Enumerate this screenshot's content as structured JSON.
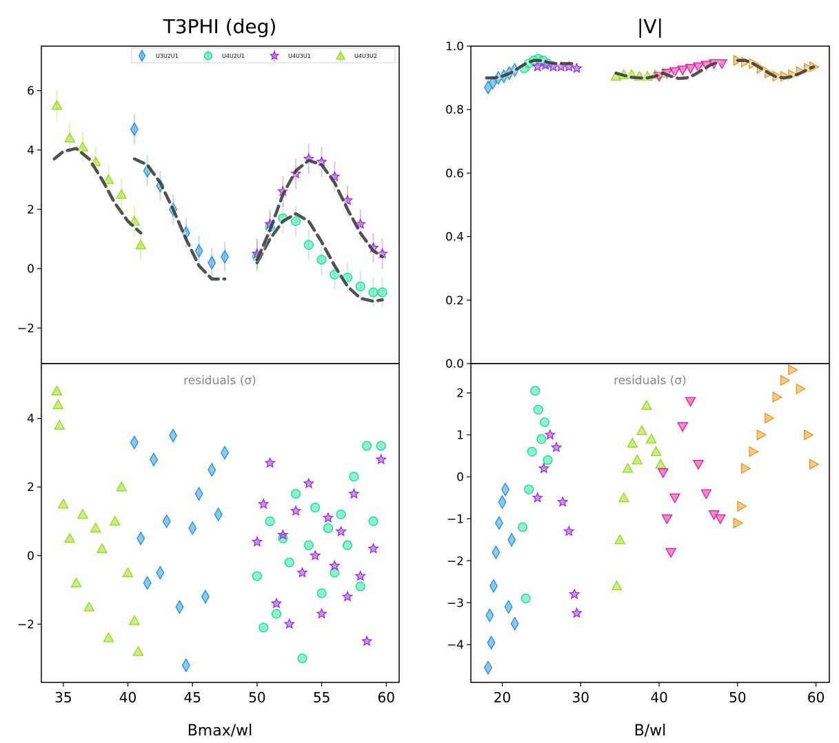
{
  "figure": {
    "left_title": "T3PHI (deg)",
    "right_title": "|V|",
    "left_xlabel": "Bmax/wl",
    "right_xlabel": "B/wl",
    "residuals_label": "residuals (σ)"
  },
  "colors": {
    "U3U2U1": "#1f8fd8",
    "U4U2U1": "#22e09a",
    "U4U3U1": "#9b2be0",
    "U4U3U2": "#8fdc12",
    "pink": "#e8189a",
    "orange": "#e8961a",
    "model": "#333333"
  },
  "legend": [
    {
      "label": "U3U2U1",
      "marker": "diamond",
      "color": "#1f8fd8"
    },
    {
      "label": "U4U2U1",
      "marker": "circle",
      "color": "#22e09a"
    },
    {
      "label": "U4U3U1",
      "marker": "star",
      "color": "#9b2be0"
    },
    {
      "label": "U4U3U2",
      "marker": "triangle",
      "color": "#8fdc12"
    }
  ],
  "chart_data": [
    {
      "id": "t3phi",
      "type": "scatter",
      "title": "T3PHI (deg)",
      "xlim": [
        33.3,
        61.0
      ],
      "ylim": [
        -3.2,
        7.5
      ],
      "yticks": [
        -2,
        0,
        2,
        4,
        6
      ],
      "legend_position": "top-right",
      "series": [
        {
          "name": "U4U3U2",
          "marker": "triangle",
          "color": "#8fdc12",
          "errorbars": true,
          "x": [
            34.5,
            35.5,
            36.5,
            37.5,
            38.5,
            39.5,
            40.5,
            41.0
          ],
          "y": [
            5.5,
            4.4,
            4.1,
            3.6,
            3.0,
            2.5,
            1.6,
            0.8
          ]
        },
        {
          "name": "U3U2U1",
          "marker": "diamond",
          "color": "#1f8fd8",
          "errorbars": true,
          "x": [
            40.5,
            41.5,
            42.5,
            43.5,
            44.5,
            45.5,
            46.5,
            47.5
          ],
          "y": [
            4.7,
            3.3,
            2.8,
            2.0,
            1.2,
            0.6,
            0.2,
            0.4
          ]
        },
        {
          "name": "U4U2U1",
          "marker": "circle",
          "color": "#22e09a",
          "errorbars": true,
          "x": [
            50.0,
            51.0,
            52.0,
            53.0,
            54.0,
            55.0,
            56.0,
            57.0,
            58.0,
            59.0,
            59.7
          ],
          "y": [
            0.4,
            1.4,
            1.7,
            1.6,
            0.8,
            0.3,
            -0.2,
            -0.3,
            -0.6,
            -0.8,
            -0.8
          ]
        },
        {
          "name": "U4U3U1",
          "marker": "star",
          "color": "#9b2be0",
          "errorbars": true,
          "x": [
            50.0,
            51.0,
            52.0,
            53.0,
            54.0,
            55.0,
            56.0,
            57.0,
            58.0,
            59.0,
            59.7
          ],
          "y": [
            0.5,
            1.5,
            2.6,
            3.2,
            3.7,
            3.6,
            3.1,
            2.3,
            1.5,
            0.7,
            0.5
          ]
        }
      ],
      "models": [
        {
          "x": [
            34.3,
            35.0,
            36.0,
            37.0,
            38.0,
            39.0,
            40.0,
            41.0
          ],
          "y": [
            3.7,
            3.95,
            4.05,
            3.7,
            3.0,
            2.2,
            1.6,
            1.2
          ]
        },
        {
          "x": [
            40.5,
            41.5,
            42.5,
            43.5,
            44.5,
            45.5,
            46.5,
            47.5
          ],
          "y": [
            3.7,
            3.5,
            2.9,
            2.0,
            1.0,
            0.1,
            -0.35,
            -0.35
          ]
        },
        {
          "x": [
            50.0,
            51.0,
            52.0,
            53.0,
            54.0,
            55.0,
            56.0,
            57.0,
            58.0,
            59.0,
            59.7
          ],
          "y": [
            0.2,
            1.0,
            1.6,
            1.85,
            1.6,
            0.9,
            0.1,
            -0.6,
            -1.0,
            -1.1,
            -1.05
          ]
        },
        {
          "x": [
            50.0,
            51.0,
            52.0,
            53.0,
            54.0,
            55.0,
            56.0,
            57.0,
            58.0,
            59.0,
            59.7
          ],
          "y": [
            0.3,
            1.3,
            2.5,
            3.3,
            3.65,
            3.5,
            2.9,
            2.0,
            1.2,
            0.6,
            0.4
          ]
        }
      ]
    },
    {
      "id": "t3phi_residuals",
      "type": "scatter",
      "xlabel": "Bmax/wl",
      "xlim": [
        33.3,
        61.0
      ],
      "ylim": [
        -3.7,
        5.6
      ],
      "yticks": [
        -2,
        0,
        2,
        4
      ],
      "xticks": [
        35,
        40,
        45,
        50,
        55,
        60
      ],
      "series": [
        {
          "name": "U4U3U2",
          "marker": "triangle",
          "color": "#8fdc12",
          "x": [
            34.5,
            34.6,
            34.7,
            35.0,
            35.5,
            36.0,
            36.5,
            37.0,
            37.5,
            38.0,
            38.5,
            39.0,
            39.5,
            40.0,
            40.5,
            40.8
          ],
          "y": [
            4.8,
            4.4,
            3.8,
            1.5,
            0.5,
            -0.8,
            1.2,
            -1.5,
            0.8,
            0.2,
            -2.4,
            1.0,
            2.0,
            -0.5,
            -1.9,
            -2.8
          ]
        },
        {
          "name": "U3U2U1",
          "marker": "diamond",
          "color": "#1f8fd8",
          "x": [
            40.5,
            41.0,
            41.5,
            42.0,
            42.5,
            43.0,
            43.5,
            44.0,
            44.5,
            45.0,
            45.5,
            46.0,
            46.5,
            47.0,
            47.5
          ],
          "y": [
            3.3,
            0.5,
            -0.8,
            2.8,
            -0.5,
            1.0,
            3.5,
            -1.5,
            -3.2,
            0.8,
            1.8,
            -1.2,
            2.5,
            1.2,
            3.0
          ]
        },
        {
          "name": "U4U2U1",
          "marker": "circle",
          "color": "#22e09a",
          "x": [
            50.0,
            50.5,
            51.0,
            51.5,
            52.0,
            52.5,
            53.0,
            53.5,
            54.0,
            54.5,
            55.0,
            55.5,
            56.0,
            56.5,
            57.0,
            57.5,
            58.0,
            58.5,
            59.0,
            59.6
          ],
          "y": [
            -0.6,
            -2.1,
            1.0,
            -1.7,
            0.5,
            -0.2,
            1.8,
            -3.0,
            0.3,
            1.4,
            -1.1,
            0.8,
            -0.5,
            1.2,
            0.3,
            2.3,
            -0.9,
            3.2,
            1.0,
            3.2
          ]
        },
        {
          "name": "U4U3U1",
          "marker": "star",
          "color": "#9b2be0",
          "x": [
            50.0,
            50.5,
            51.0,
            51.5,
            52.0,
            52.5,
            53.0,
            53.5,
            54.0,
            54.5,
            55.0,
            55.5,
            56.0,
            56.5,
            57.0,
            57.5,
            58.0,
            58.5,
            59.0,
            59.6
          ],
          "y": [
            0.4,
            1.5,
            2.7,
            -1.4,
            0.6,
            -2.0,
            1.3,
            -0.5,
            2.1,
            0.0,
            -1.7,
            1.1,
            -0.3,
            0.7,
            -1.2,
            1.8,
            -0.6,
            -2.5,
            0.2,
            2.8
          ]
        }
      ]
    },
    {
      "id": "visamp",
      "type": "scatter",
      "title": "|V|",
      "xlim": [
        16.0,
        61.7
      ],
      "ylim": [
        0.0,
        1.0
      ],
      "yticks": [
        0.0,
        0.2,
        0.4,
        0.6,
        0.8,
        1.0
      ],
      "series": [
        {
          "marker": "diamond",
          "color": "#1f8fd8",
          "x": [
            18.2,
            18.8,
            19.5,
            20.2,
            20.9,
            21.6
          ],
          "y": [
            0.87,
            0.885,
            0.9,
            0.905,
            0.915,
            0.925
          ]
        },
        {
          "marker": "circle",
          "color": "#22e09a",
          "x": [
            22.8,
            23.4,
            24.0,
            24.6,
            25.2,
            25.8
          ],
          "y": [
            0.93,
            0.945,
            0.955,
            0.96,
            0.955,
            0.945
          ]
        },
        {
          "marker": "star",
          "color": "#9b2be0",
          "x": [
            24.5,
            25.5,
            26.5,
            27.5,
            28.5,
            29.5
          ],
          "y": [
            0.935,
            0.94,
            0.935,
            0.935,
            0.935,
            0.93
          ]
        },
        {
          "marker": "triangle",
          "color": "#8fdc12",
          "x": [
            34.5,
            35.5,
            36.5,
            37.5,
            38.5,
            39.5,
            40.5
          ],
          "y": [
            0.905,
            0.91,
            0.91,
            0.905,
            0.905,
            0.91,
            0.915
          ]
        },
        {
          "marker": "triangle-down",
          "color": "#e8189a",
          "x": [
            40.0,
            41.0,
            42.0,
            43.0,
            44.0,
            45.0,
            46.0,
            47.0,
            48.0
          ],
          "y": [
            0.905,
            0.915,
            0.92,
            0.925,
            0.93,
            0.935,
            0.94,
            0.945,
            0.945
          ]
        },
        {
          "marker": "triangle-right",
          "color": "#e8961a",
          "x": [
            50.0,
            51.0,
            52.0,
            53.0,
            54.0,
            55.0,
            56.0,
            57.0,
            58.0,
            59.0,
            59.7
          ],
          "y": [
            0.955,
            0.95,
            0.945,
            0.93,
            0.915,
            0.905,
            0.905,
            0.91,
            0.92,
            0.93,
            0.935
          ]
        }
      ],
      "models": [
        {
          "x": [
            18.0,
            19.0,
            20.0,
            21.0,
            22.0,
            23.0,
            24.0,
            25.0,
            26.0,
            27.0,
            28.0,
            29.0
          ],
          "y": [
            0.9,
            0.9,
            0.905,
            0.915,
            0.93,
            0.945,
            0.955,
            0.955,
            0.948,
            0.945,
            0.945,
            0.945
          ]
        },
        {
          "x": [
            34.5,
            35.5,
            36.5,
            37.5,
            38.5,
            39.5,
            40.5,
            41.5,
            42.5,
            43.5,
            44.5,
            45.5,
            46.5,
            47.5
          ],
          "y": [
            0.915,
            0.908,
            0.902,
            0.9,
            0.9,
            0.905,
            0.915,
            0.905,
            0.898,
            0.9,
            0.91,
            0.925,
            0.94,
            0.95
          ]
        },
        {
          "x": [
            50.0,
            51.0,
            52.0,
            53.0,
            54.0,
            55.0,
            56.0,
            57.0,
            58.0,
            59.0,
            59.7
          ],
          "y": [
            0.955,
            0.955,
            0.945,
            0.93,
            0.915,
            0.902,
            0.9,
            0.905,
            0.915,
            0.928,
            0.935
          ]
        }
      ]
    },
    {
      "id": "visamp_residuals",
      "type": "scatter",
      "xlabel": "B/wl",
      "xlim": [
        16.0,
        61.7
      ],
      "ylim": [
        -4.9,
        2.7
      ],
      "yticks": [
        -4,
        -3,
        -2,
        -1,
        0,
        1,
        2
      ],
      "xticks": [
        20,
        30,
        40,
        50,
        60
      ],
      "series": [
        {
          "marker": "diamond",
          "color": "#1f8fd8",
          "x": [
            18.2,
            18.4,
            18.6,
            18.9,
            19.2,
            19.6,
            20.0,
            20.4,
            20.8,
            21.2,
            21.6
          ],
          "y": [
            -4.55,
            -3.3,
            -3.95,
            -2.6,
            -1.8,
            -1.1,
            -0.6,
            -0.3,
            -3.1,
            -1.5,
            -3.5
          ]
        },
        {
          "marker": "circle",
          "color": "#22e09a",
          "x": [
            22.6,
            23.0,
            23.4,
            23.8,
            24.2,
            24.6,
            25.0,
            25.4,
            25.8
          ],
          "y": [
            -1.2,
            -2.9,
            -0.3,
            0.6,
            2.05,
            1.6,
            0.9,
            1.3,
            0.4
          ]
        },
        {
          "marker": "star",
          "color": "#9b2be0",
          "x": [
            24.5,
            25.3,
            26.1,
            26.9,
            27.7,
            28.5,
            29.2,
            29.5
          ],
          "y": [
            -0.5,
            0.2,
            1.0,
            0.7,
            -0.6,
            -1.3,
            -2.8,
            -3.25
          ]
        },
        {
          "marker": "triangle",
          "color": "#8fdc12",
          "x": [
            34.6,
            35.0,
            35.5,
            36.0,
            36.6,
            37.2,
            37.8,
            38.4,
            39.0,
            39.6,
            40.2
          ],
          "y": [
            -2.6,
            -1.5,
            -0.5,
            0.2,
            0.8,
            0.4,
            1.1,
            1.7,
            0.9,
            0.6,
            0.3
          ]
        },
        {
          "marker": "triangle-down",
          "color": "#e8189a",
          "x": [
            40.5,
            41.0,
            41.5,
            42.0,
            43.0,
            44.0,
            45.0,
            46.0,
            47.0,
            47.8
          ],
          "y": [
            0.1,
            -1.0,
            -1.8,
            -0.5,
            1.2,
            1.8,
            0.3,
            -0.4,
            -0.9,
            -1.0
          ]
        },
        {
          "marker": "triangle-right",
          "color": "#e8961a",
          "x": [
            50.0,
            50.5,
            51.0,
            52.0,
            53.0,
            54.0,
            55.0,
            56.0,
            57.0,
            58.0,
            59.0,
            59.7
          ],
          "y": [
            -1.1,
            -0.7,
            0.2,
            0.6,
            1.0,
            1.4,
            1.9,
            2.3,
            2.55,
            2.1,
            1.0,
            0.3
          ]
        }
      ]
    }
  ]
}
